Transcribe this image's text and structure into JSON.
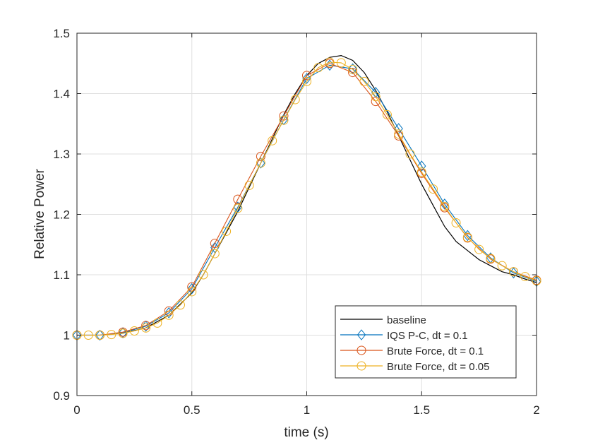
{
  "chart_data": {
    "type": "line",
    "title": "",
    "xlabel": "time (s)",
    "ylabel": "Relative Power",
    "xlim": [
      0,
      2
    ],
    "ylim": [
      0.9,
      1.5
    ],
    "x_ticks": [
      "0",
      "0.5",
      "1",
      "1.5",
      "2"
    ],
    "y_ticks": [
      "0.9",
      "1",
      "1.1",
      "1.2",
      "1.3",
      "1.4",
      "1.5"
    ],
    "grid": true,
    "legend_position": "bottom-right",
    "series": [
      {
        "name": "baseline",
        "color": "#000000",
        "marker": "none",
        "x": [
          0,
          0.1,
          0.2,
          0.3,
          0.4,
          0.5,
          0.55,
          0.6,
          0.65,
          0.7,
          0.75,
          0.8,
          0.85,
          0.9,
          0.95,
          1.0,
          1.05,
          1.1,
          1.15,
          1.2,
          1.25,
          1.3,
          1.35,
          1.4,
          1.45,
          1.5,
          1.55,
          1.6,
          1.65,
          1.7,
          1.75,
          1.8,
          1.85,
          1.9,
          1.95,
          2.0
        ],
        "y": [
          1.0,
          1.0,
          1.003,
          1.012,
          1.033,
          1.07,
          1.1,
          1.135,
          1.17,
          1.205,
          1.245,
          1.285,
          1.325,
          1.365,
          1.4,
          1.43,
          1.45,
          1.46,
          1.463,
          1.455,
          1.435,
          1.405,
          1.37,
          1.33,
          1.29,
          1.25,
          1.215,
          1.18,
          1.155,
          1.14,
          1.125,
          1.115,
          1.105,
          1.1,
          1.093,
          1.087
        ]
      },
      {
        "name": "IQS P-C, dt = 0.1",
        "color": "#0072BD",
        "marker": "diamond",
        "x": [
          0,
          0.1,
          0.2,
          0.3,
          0.4,
          0.5,
          0.6,
          0.7,
          0.8,
          0.9,
          1.0,
          1.1,
          1.2,
          1.3,
          1.4,
          1.5,
          1.6,
          1.7,
          1.8,
          1.9,
          2.0
        ],
        "y": [
          1.0,
          1.0,
          1.004,
          1.015,
          1.037,
          1.077,
          1.145,
          1.212,
          1.285,
          1.357,
          1.425,
          1.447,
          1.441,
          1.402,
          1.342,
          1.28,
          1.217,
          1.165,
          1.128,
          1.103,
          1.089
        ]
      },
      {
        "name": "Brute Force, dt = 0.1",
        "color": "#D95319",
        "marker": "circle",
        "x": [
          0,
          0.1,
          0.2,
          0.3,
          0.4,
          0.5,
          0.6,
          0.7,
          0.8,
          0.9,
          1.0,
          1.1,
          1.2,
          1.3,
          1.4,
          1.5,
          1.6,
          1.7,
          1.8,
          1.9,
          2.0
        ],
        "y": [
          1.0,
          1.0,
          1.005,
          1.016,
          1.04,
          1.08,
          1.152,
          1.225,
          1.296,
          1.363,
          1.43,
          1.45,
          1.435,
          1.387,
          1.33,
          1.268,
          1.211,
          1.161,
          1.126,
          1.105,
          1.091
        ]
      },
      {
        "name": "Brute Force, dt = 0.05",
        "color": "#EDB120",
        "marker": "circle",
        "x": [
          0,
          0.05,
          0.1,
          0.15,
          0.2,
          0.25,
          0.3,
          0.35,
          0.4,
          0.45,
          0.5,
          0.55,
          0.6,
          0.65,
          0.7,
          0.75,
          0.8,
          0.85,
          0.9,
          0.95,
          1.0,
          1.05,
          1.1,
          1.15,
          1.2,
          1.25,
          1.3,
          1.35,
          1.4,
          1.45,
          1.5,
          1.55,
          1.6,
          1.65,
          1.7,
          1.75,
          1.8,
          1.85,
          1.9,
          1.95,
          2.0
        ],
        "y": [
          1.0,
          1.0,
          1.0,
          1.001,
          1.003,
          1.007,
          1.012,
          1.02,
          1.033,
          1.05,
          1.072,
          1.1,
          1.135,
          1.172,
          1.21,
          1.248,
          1.285,
          1.322,
          1.356,
          1.39,
          1.42,
          1.443,
          1.452,
          1.451,
          1.44,
          1.42,
          1.395,
          1.365,
          1.333,
          1.3,
          1.27,
          1.242,
          1.213,
          1.186,
          1.162,
          1.142,
          1.127,
          1.115,
          1.105,
          1.097,
          1.09
        ]
      }
    ]
  }
}
